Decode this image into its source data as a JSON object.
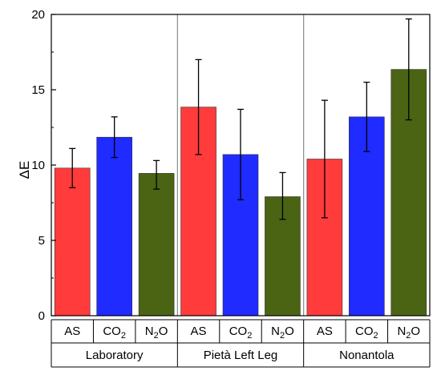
{
  "chart_data": {
    "type": "bar",
    "ylabel": "ΔE",
    "ylim": [
      0,
      20
    ],
    "yticks": [
      0,
      5,
      10,
      15,
      20
    ],
    "grid": false,
    "groups": [
      {
        "label": "Laboratory",
        "bars": [
          {
            "category": "AS",
            "sub": "",
            "value": 9.8,
            "err_low": 8.5,
            "err_high": 11.1,
            "color": "#ff3b3b"
          },
          {
            "category": "CO",
            "sub": "2",
            "value": 11.85,
            "err_low": 10.5,
            "err_high": 13.2,
            "color": "#1f2bff"
          },
          {
            "category": "N",
            "sub": "2",
            "suffix": "O",
            "value": 9.45,
            "err_low": 8.4,
            "err_high": 10.3,
            "color": "#4a6414"
          }
        ]
      },
      {
        "label": "Pietà Left Leg",
        "bars": [
          {
            "category": "AS",
            "sub": "",
            "value": 13.85,
            "err_low": 10.7,
            "err_high": 17.0,
            "color": "#ff3b3b"
          },
          {
            "category": "CO",
            "sub": "2",
            "value": 10.7,
            "err_low": 7.7,
            "err_high": 13.7,
            "color": "#1f2bff"
          },
          {
            "category": "N",
            "sub": "2",
            "suffix": "O",
            "value": 7.9,
            "err_low": 6.4,
            "err_high": 9.5,
            "color": "#4a6414"
          }
        ]
      },
      {
        "label": "Nonantola",
        "bars": [
          {
            "category": "AS",
            "sub": "",
            "value": 10.4,
            "err_low": 6.5,
            "err_high": 14.3,
            "color": "#ff3b3b"
          },
          {
            "category": "CO",
            "sub": "2",
            "value": 13.2,
            "err_low": 10.9,
            "err_high": 15.5,
            "color": "#1f2bff"
          },
          {
            "category": "N",
            "sub": "2",
            "suffix": "O",
            "value": 16.35,
            "err_low": 13.0,
            "err_high": 19.7,
            "color": "#4a6414"
          }
        ]
      }
    ]
  }
}
